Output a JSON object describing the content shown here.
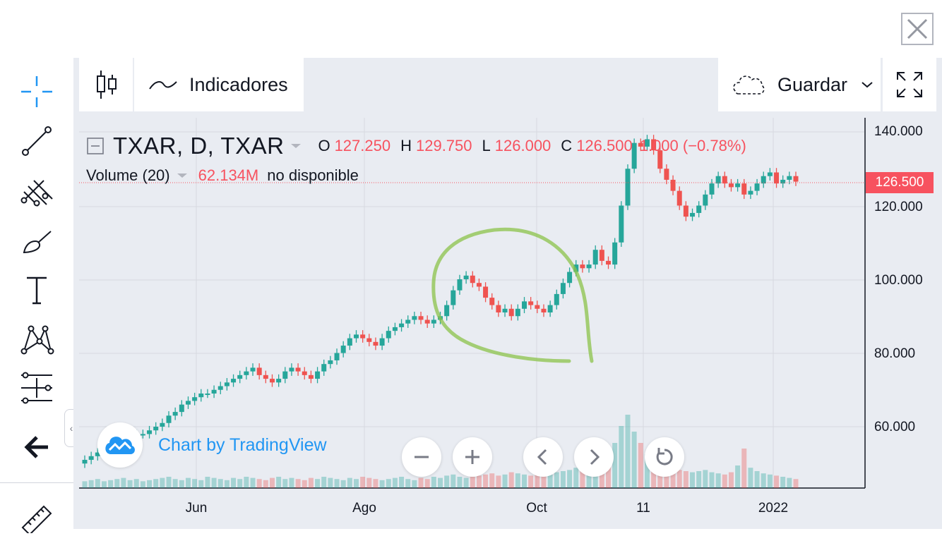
{
  "toolbar": {
    "indicators_label": "Indicadores",
    "save_label": "Guardar"
  },
  "legend": {
    "symbol": "TXAR, D, TXAR",
    "open_label": "O",
    "open_value": "127.250",
    "high_label": "H",
    "high_value": "129.750",
    "low_label": "L",
    "low_value": "126.000",
    "close_label": "C",
    "close_value": "126.500",
    "change_value": "−",
    "change_text": "1.000 (−0.78%)",
    "volume_label": "Volume (20)",
    "volume_value": "62.134M",
    "volume_status": "no disponible"
  },
  "price_axis": {
    "ticks": [
      "140.000",
      "120.000",
      "100.000",
      "80.000",
      "60.000"
    ],
    "last_price": "126.500"
  },
  "time_axis": {
    "ticks": [
      "Jun",
      "Ago",
      "Oct",
      "11",
      "2022"
    ]
  },
  "branding": {
    "text": "Chart by TradingView"
  },
  "colors": {
    "up": "#26a69a",
    "down": "#ef5350",
    "accent": "#2196f3",
    "annotation": "#8bc34a"
  },
  "chart_data": {
    "type": "candlestick",
    "symbol": "TXAR",
    "interval": "D",
    "y_range": [
      43,
      142
    ],
    "x": [
      "Jun",
      "Ago",
      "Oct",
      "11",
      "2022"
    ],
    "ylim_labels": [
      "60.000",
      "80.000",
      "100.000",
      "120.000",
      "140.000"
    ],
    "close_series": [
      51,
      52,
      53,
      54,
      55,
      56,
      57,
      57,
      58,
      58,
      59,
      60,
      61,
      63,
      64,
      66,
      67,
      68,
      69,
      69,
      70,
      71,
      72,
      73,
      74,
      75,
      76,
      74,
      73,
      72,
      73,
      75,
      76,
      75,
      74,
      73,
      75,
      77,
      78,
      80,
      82,
      84,
      85,
      84,
      83,
      82,
      84,
      86,
      87,
      88,
      89,
      90,
      89,
      88,
      89,
      90,
      93,
      97,
      100,
      101,
      99,
      98,
      95,
      93,
      91,
      92,
      90,
      92,
      94,
      93,
      92,
      91,
      93,
      96,
      99,
      102,
      104,
      103,
      104,
      108,
      105,
      104,
      110,
      120,
      130,
      137,
      136,
      138,
      135,
      130,
      127,
      124,
      120,
      117,
      118,
      120,
      123,
      126,
      128,
      126,
      125,
      126,
      123,
      124,
      126,
      128,
      129,
      126,
      127,
      128,
      126.5
    ],
    "volume_series": [
      6,
      7,
      8,
      6,
      7,
      8,
      9,
      7,
      8,
      6,
      7,
      8,
      9,
      10,
      8,
      7,
      9,
      8,
      7,
      10,
      9,
      8,
      7,
      9,
      8,
      10,
      9,
      8,
      7,
      9,
      10,
      8,
      9,
      8,
      7,
      9,
      8,
      10,
      9,
      8,
      7,
      9,
      8,
      10,
      9,
      8,
      7,
      8,
      9,
      10,
      8,
      7,
      9,
      8,
      10,
      9,
      11,
      12,
      10,
      9,
      10,
      11,
      12,
      13,
      11,
      12,
      14,
      13,
      12,
      11,
      12,
      13,
      12,
      14,
      15,
      16,
      18,
      15,
      17,
      20,
      22,
      25,
      40,
      55,
      65,
      50,
      40,
      30,
      25,
      20,
      18,
      17,
      16,
      15,
      14,
      15,
      16,
      14,
      13,
      12,
      14,
      20,
      35,
      18,
      15,
      13,
      12,
      11,
      10,
      9,
      8
    ],
    "last_price": 126.5
  }
}
